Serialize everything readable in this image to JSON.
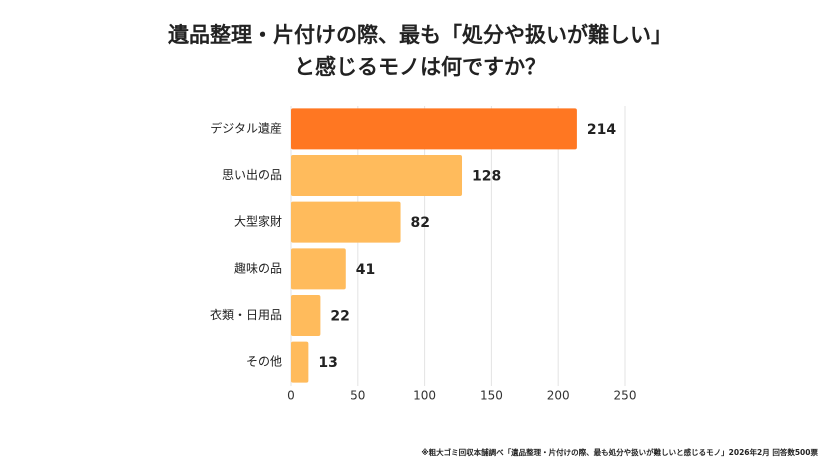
{
  "chart_data": {
    "type": "hbar",
    "title": [
      "遺品整理・片付けの際、最も「処分や扱いが難しい」",
      "と感じるモノは何ですか？"
    ],
    "categories": [
      "デジタル遺産",
      "思い出の品",
      "大型家財",
      "趣味の品",
      "衣類・日用品",
      "その他"
    ],
    "values": [
      214,
      128,
      82,
      41,
      22,
      13
    ],
    "colors": [
      "#ff7722",
      "#ffbb5c",
      "#ffbb5c",
      "#ffbb5c",
      "#ffbb5c",
      "#ffbb5c"
    ],
    "xlim": [
      0,
      250
    ],
    "xticks": [
      0,
      50,
      100,
      150,
      200,
      250
    ],
    "grid": true,
    "source": "※粗大ゴミ回収本舗調べ「遺品整理・片付けの際、最も処分や扱いが難しいと感じるモノ」2026年2月 回答数500票"
  }
}
